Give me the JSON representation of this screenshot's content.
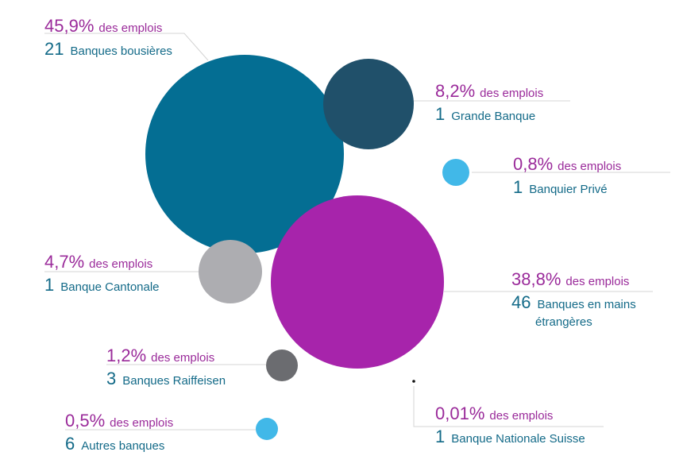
{
  "chart_data": {
    "type": "bubble",
    "pct_suffix": "des emplois",
    "colors": {
      "pct_text": "#9a2a9a",
      "count_text": "#136a88",
      "leader": "#d4d4d4"
    },
    "items": [
      {
        "share_pct": "45,9%",
        "share": 45.9,
        "count": "21",
        "label": "Banques bousières",
        "color": "#046e93"
      },
      {
        "share_pct": "8,2%",
        "share": 8.2,
        "count": "1",
        "label": "Grande Banque",
        "color": "#20506a"
      },
      {
        "share_pct": "0,8%",
        "share": 0.8,
        "count": "1",
        "label": "Banquier Privé",
        "color": "#41b8e8"
      },
      {
        "share_pct": "4,7%",
        "share": 4.7,
        "count": "1",
        "label": "Banque Cantonale",
        "color": "#adadb1"
      },
      {
        "share_pct": "38,8%",
        "share": 38.8,
        "count": "46",
        "label": "Banques en mains étrangères",
        "color": "#a724ab"
      },
      {
        "share_pct": "1,2%",
        "share": 1.2,
        "count": "3",
        "label": "Banques Raiffeisen",
        "color": "#6b6c70"
      },
      {
        "share_pct": "0,5%",
        "share": 0.5,
        "count": "6",
        "label": "Autres banques",
        "color": "#41b8e8"
      },
      {
        "share_pct": "0,01%",
        "share": 0.01,
        "count": "1",
        "label": "Banque Nationale Suisse",
        "color": "#111111"
      }
    ]
  }
}
